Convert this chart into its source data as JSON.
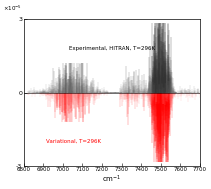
{
  "xmin": 6800,
  "xmax": 7700,
  "ymin": -3e-05,
  "ymax": 3e-05,
  "xlabel": "cm$^{-1}$",
  "label_experimental": "Experimental, HITRAN, T=296K",
  "label_variational": "Variational, T=296K",
  "color_experimental": "#222222",
  "color_experimental_light": "#888888",
  "color_variational": "#ff0000",
  "color_variational_light": "#ff9999",
  "background_color": "#ffffff",
  "xticks": [
    6800,
    6900,
    7000,
    7100,
    7200,
    7300,
    7400,
    7500,
    7600,
    7700
  ],
  "ytick_labels": [
    "-3",
    "0",
    "3"
  ],
  "ytick_vals": [
    -3e-05,
    0,
    3e-05
  ]
}
